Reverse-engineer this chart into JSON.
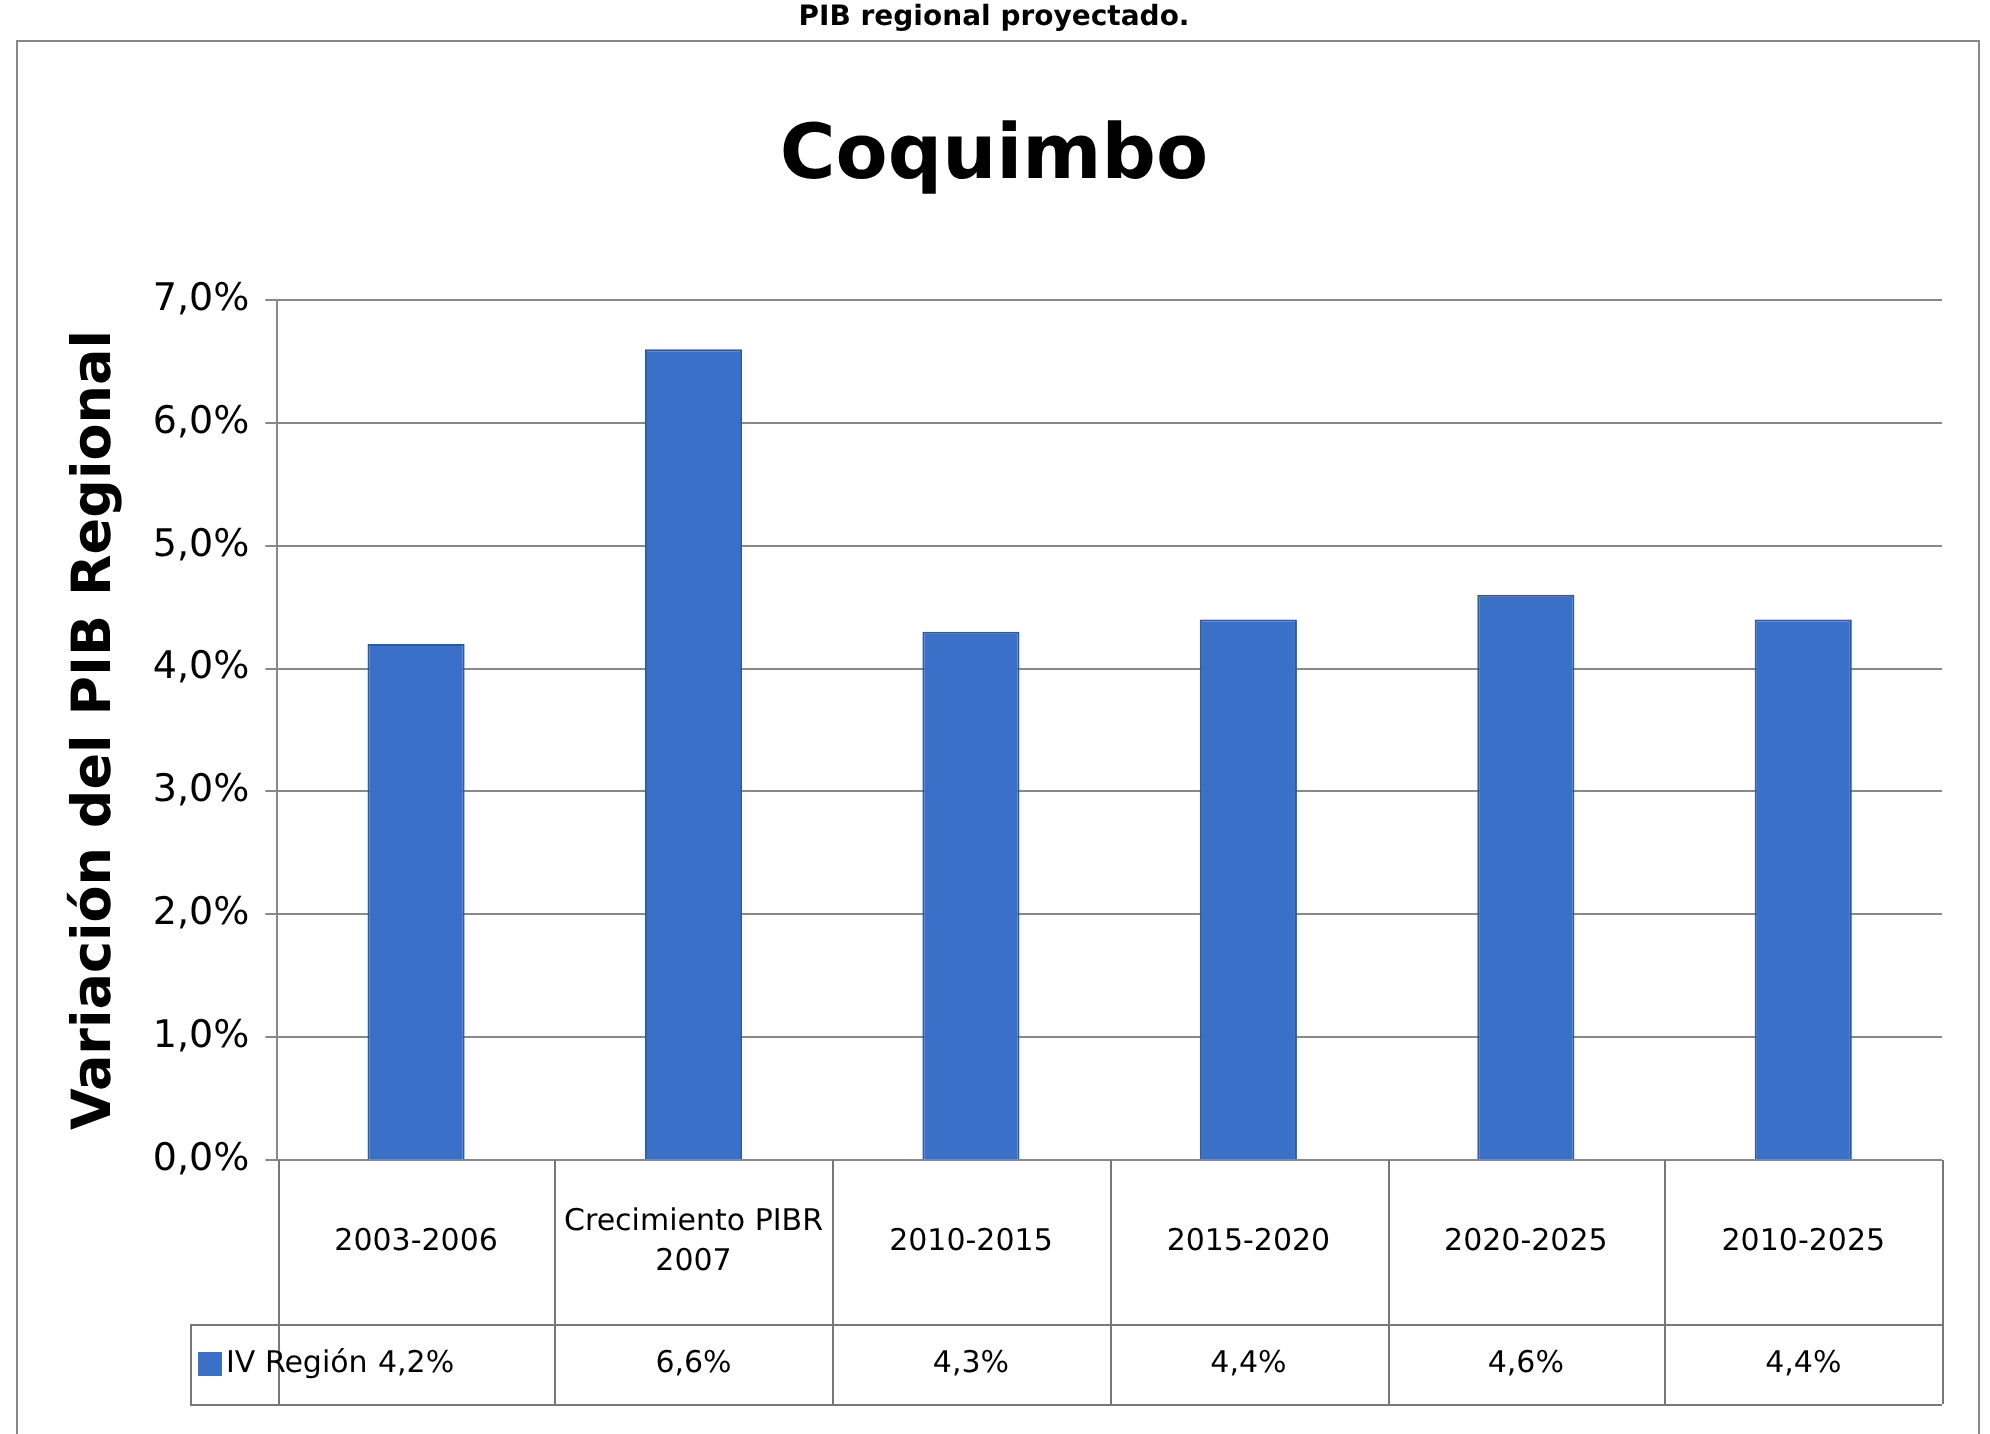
{
  "chart_data": {
    "type": "bar",
    "title": "Coquimbo",
    "ylabel": "Variación del PIB Regional",
    "annotations": [
      "PIB regional proyectado."
    ],
    "categories": [
      "2003-2006",
      "Crecimiento PIBR 2007",
      "2010-2015",
      "2015-2020",
      "2020-2025",
      "2010-2025"
    ],
    "series": [
      {
        "name": "IV Región",
        "color": "#3b70c8",
        "values": [
          4.2,
          6.6,
          4.3,
          4.4,
          4.6,
          4.4
        ],
        "value_labels": [
          "4,2%",
          "6,6%",
          "4,3%",
          "4,4%",
          "4,6%",
          "4,4%"
        ]
      }
    ],
    "ylim": [
      0,
      7
    ],
    "yticks": [
      {
        "value": 0,
        "label": "0,0%"
      },
      {
        "value": 1,
        "label": "1,0%"
      },
      {
        "value": 2,
        "label": "2,0%"
      },
      {
        "value": 3,
        "label": "3,0%"
      },
      {
        "value": 4,
        "label": "4,0%"
      },
      {
        "value": 5,
        "label": "5,0%"
      },
      {
        "value": 6,
        "label": "6,0%"
      },
      {
        "value": 7,
        "label": "7,0%"
      }
    ],
    "grid": "y",
    "legend": "bottom left"
  }
}
